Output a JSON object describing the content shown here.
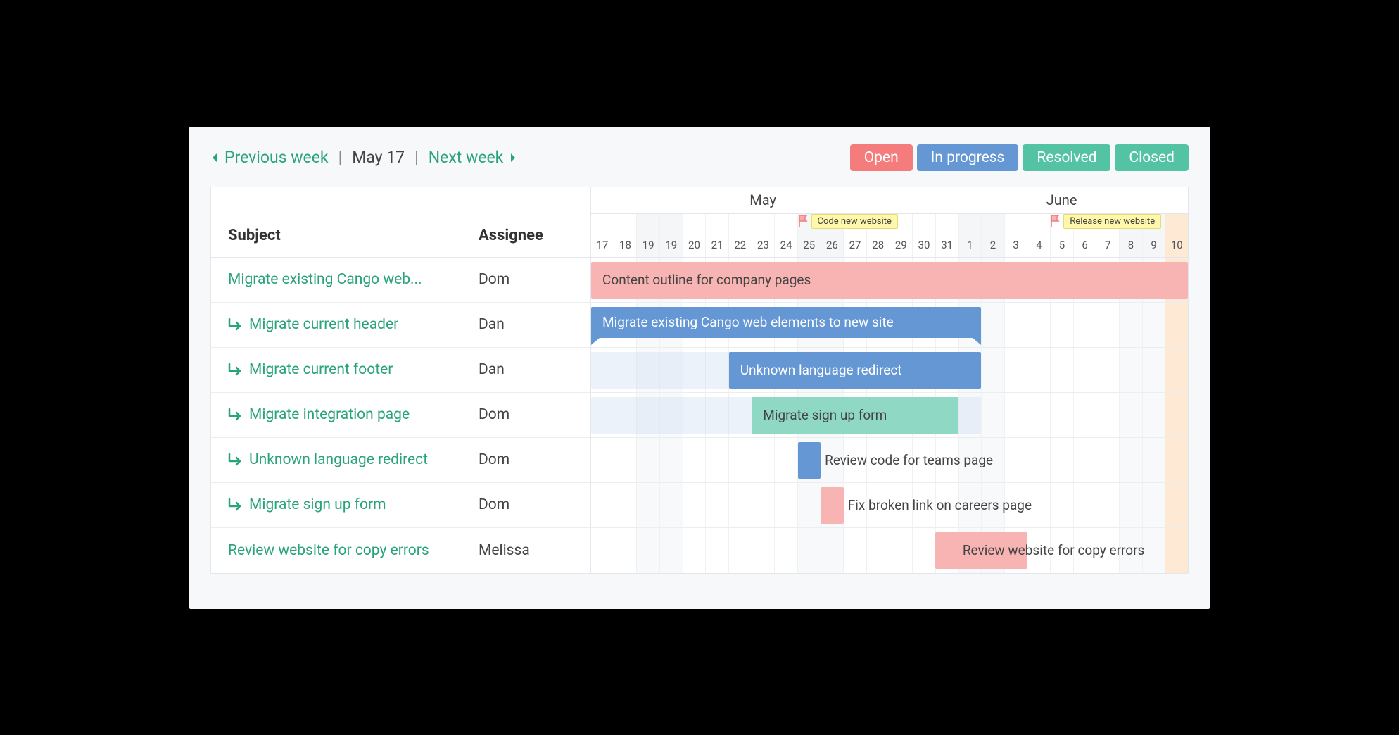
{
  "colors": {
    "open": "#f47c7c",
    "open_light": "#f8b3b3",
    "in_progress": "#6497d4",
    "in_progress_light": "#c8daf0",
    "resolved": "#54c3a3",
    "resolved_light": "#8fd9c4",
    "closed": "#54c3a3",
    "accent_green": "#29a37a",
    "milestone_flag": "#f47c7c",
    "milestone_bg": "#fff7aa",
    "weekend_bg": "#f5f6f8",
    "highlight_col": "#fee9d4"
  },
  "nav": {
    "prev_label": "Previous week",
    "date_label": "May 17",
    "next_label": "Next week"
  },
  "status_legend": [
    {
      "label": "Open",
      "color": "#f47c7c"
    },
    {
      "label": "In progress",
      "color": "#6497d4"
    },
    {
      "label": "Resolved",
      "color": "#54c3a3"
    },
    {
      "label": "Closed",
      "color": "#54c3a3"
    }
  ],
  "columns": {
    "subject_header": "Subject",
    "assignee_header": "Assignee"
  },
  "timeline": {
    "col_width_pct": 3.846,
    "months": [
      {
        "label": "May",
        "span": 15
      },
      {
        "label": "June",
        "span": 11
      }
    ],
    "dates": [
      {
        "d": "17",
        "weekend": false
      },
      {
        "d": "18",
        "weekend": false
      },
      {
        "d": "19",
        "weekend": true
      },
      {
        "d": "19",
        "weekend": true
      },
      {
        "d": "20",
        "weekend": false
      },
      {
        "d": "21",
        "weekend": false
      },
      {
        "d": "22",
        "weekend": false
      },
      {
        "d": "23",
        "weekend": false
      },
      {
        "d": "24",
        "weekend": false
      },
      {
        "d": "25",
        "weekend": true
      },
      {
        "d": "26",
        "weekend": true
      },
      {
        "d": "27",
        "weekend": false
      },
      {
        "d": "28",
        "weekend": false
      },
      {
        "d": "29",
        "weekend": false
      },
      {
        "d": "30",
        "weekend": false
      },
      {
        "d": "31",
        "weekend": false
      },
      {
        "d": "1",
        "weekend": true
      },
      {
        "d": "2",
        "weekend": true
      },
      {
        "d": "3",
        "weekend": false
      },
      {
        "d": "4",
        "weekend": false
      },
      {
        "d": "5",
        "weekend": false
      },
      {
        "d": "6",
        "weekend": false
      },
      {
        "d": "7",
        "weekend": false
      },
      {
        "d": "8",
        "weekend": true
      },
      {
        "d": "9",
        "weekend": true
      },
      {
        "d": "10",
        "weekend": false
      }
    ],
    "highlight_col": 25,
    "milestones": [
      {
        "col": 9,
        "label": "Code new website"
      },
      {
        "col": 20,
        "label": "Release new website"
      }
    ]
  },
  "tasks": [
    {
      "subject": "Migrate existing Cango web...",
      "assignee": "Dom",
      "subtask": false
    },
    {
      "subject": "Migrate current header",
      "assignee": "Dan",
      "subtask": true
    },
    {
      "subject": "Migrate current footer",
      "assignee": "Dan",
      "subtask": true
    },
    {
      "subject": "Migrate integration page",
      "assignee": "Dom",
      "subtask": true
    },
    {
      "subject": "Unknown language redirect",
      "assignee": "Dom",
      "subtask": true
    },
    {
      "subject": "Migrate sign up form",
      "assignee": "Dom",
      "subtask": true
    },
    {
      "subject": "Review website for copy errors",
      "assignee": "Melissa",
      "subtask": false
    }
  ],
  "bars": [
    {
      "row": 0,
      "type": "bar",
      "label": "Content outline for company pages",
      "start": 0,
      "span": 26,
      "color": "#f8b3b3",
      "text_color": "#444"
    },
    {
      "row": 1,
      "type": "summary",
      "label": "Migrate existing Cango web elements to new site",
      "start": 0,
      "span": 17,
      "color": "#6497d4",
      "text_color": "#fff"
    },
    {
      "row": 2,
      "type": "span",
      "label": "",
      "start": 0,
      "span": 17,
      "color": "#c8daf0"
    },
    {
      "row": 2,
      "type": "bar",
      "label": "Unknown language redirect",
      "start": 6,
      "span": 11,
      "color": "#6497d4",
      "text_color": "#fff"
    },
    {
      "row": 3,
      "type": "span",
      "label": "",
      "start": 0,
      "span": 17,
      "color": "#c8daf0"
    },
    {
      "row": 3,
      "type": "bar",
      "label": "Migrate sign up form",
      "start": 7,
      "span": 9,
      "color": "#8fd9c4",
      "text_color": "#444"
    },
    {
      "row": 4,
      "type": "bar",
      "label": "",
      "start": 9,
      "span": 1,
      "color": "#6497d4"
    },
    {
      "row": 4,
      "type": "text",
      "label": "Review code for teams page",
      "start": 10,
      "span": 16,
      "text_color": "#444"
    },
    {
      "row": 5,
      "type": "bar",
      "label": "",
      "start": 10,
      "span": 1,
      "color": "#f8b3b3"
    },
    {
      "row": 5,
      "type": "text",
      "label": "Fix broken link on careers page",
      "start": 11,
      "span": 15,
      "text_color": "#444"
    },
    {
      "row": 6,
      "type": "bar",
      "label": "",
      "start": 15,
      "span": 4,
      "color": "#f8b3b3"
    },
    {
      "row": 6,
      "type": "text",
      "label": "Review website for copy errors",
      "start": 16,
      "span": 10,
      "text_color": "#444"
    }
  ]
}
